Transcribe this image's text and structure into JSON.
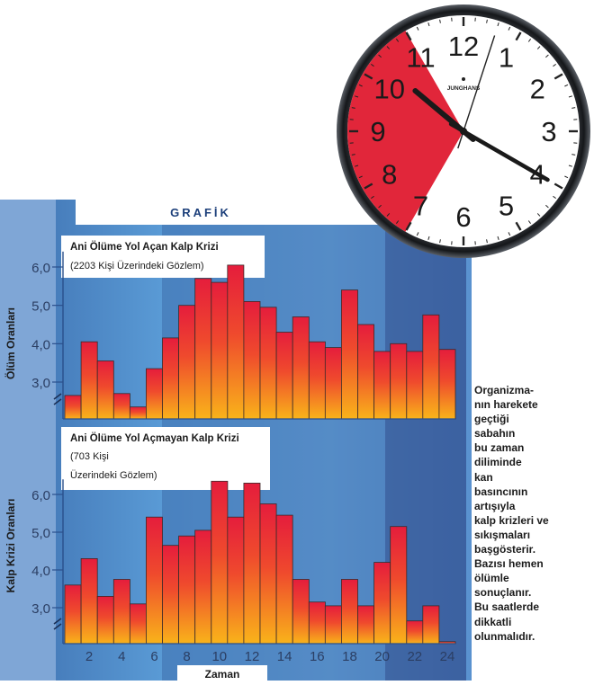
{
  "banner_title": "GRAFİK",
  "x_axis_label": "Zaman",
  "side_text_lines": [
    "Organizma-",
    "nın harekete",
    "geçtiği",
    "sabahın",
    "bu zaman",
    "diliminde",
    "kan",
    "basıncının",
    "artışıyla",
    "kalp krizleri ve",
    "sıkışmaları",
    "başgösterir.",
    "Bazısı hemen",
    "ölümle",
    "sonuçlanır.",
    "Bu saatlerde",
    "dikkatli",
    "olunmalıdır."
  ],
  "clock": {
    "numerals": [
      "12",
      "1",
      "2",
      "3",
      "4",
      "5",
      "6",
      "7",
      "8",
      "9",
      "10",
      "11"
    ],
    "brand": "JUNGHANS",
    "time": "10:20",
    "highlight_color": "#e1263a",
    "highlight_range": [
      7,
      11
    ]
  },
  "colors": {
    "bar_top": "#e51d3c",
    "bar_bottom": "#f9b31a",
    "chart_bg": "#5a9bd6",
    "chart_bg_dark": "#223b7a",
    "banner_bg": "#ffffff"
  },
  "chart_data": [
    {
      "type": "bar",
      "title": "Ani Ölüme Yol Açan Kalp Krizi",
      "subtitle": "(2203 Kişi Üzerindeki Gözlem)",
      "ylabel": "Ölüm Oranları",
      "xlabel": "Zaman",
      "x": [
        1,
        2,
        3,
        4,
        5,
        6,
        7,
        8,
        9,
        10,
        11,
        12,
        13,
        14,
        15,
        16,
        17,
        18,
        19,
        20,
        21,
        22,
        23,
        24
      ],
      "values": [
        2.65,
        4.05,
        3.55,
        2.7,
        2.35,
        3.35,
        4.15,
        5.0,
        5.7,
        5.6,
        6.05,
        5.1,
        4.95,
        4.3,
        4.7,
        4.05,
        3.9,
        5.4,
        4.5,
        3.8,
        4.0,
        3.8,
        4.75,
        3.85
      ],
      "yticks": [
        "3,0",
        "4,0",
        "5,0",
        "6,0"
      ],
      "xticks": [
        "2",
        "4",
        "6",
        "8",
        "10",
        "12",
        "14",
        "16",
        "18",
        "20",
        "22",
        "24"
      ],
      "ylim": [
        2.0,
        6.5
      ],
      "axis_break": true
    },
    {
      "type": "bar",
      "title": "Ani Ölüme Yol Açmayan Kalp Krizi",
      "subtitle": "(703 Kişi Üzerindeki Gözlem)",
      "ylabel": "Kalp Krizi Oranları",
      "xlabel": "Zaman",
      "x": [
        1,
        2,
        3,
        4,
        5,
        6,
        7,
        8,
        9,
        10,
        11,
        12,
        13,
        14,
        15,
        16,
        17,
        18,
        19,
        20,
        21,
        22,
        23,
        24
      ],
      "values": [
        3.6,
        4.3,
        3.3,
        3.75,
        3.1,
        5.4,
        4.65,
        4.9,
        5.05,
        6.35,
        5.4,
        6.3,
        5.75,
        5.45,
        3.75,
        3.15,
        3.05,
        3.75,
        3.05,
        4.2,
        5.15,
        2.65,
        3.05,
        2.1
      ],
      "yticks": [
        "3,0",
        "4,0",
        "5,0",
        "6,0"
      ],
      "xticks": [
        "2",
        "4",
        "6",
        "8",
        "10",
        "12",
        "14",
        "16",
        "18",
        "20",
        "22",
        "24"
      ],
      "ylim": [
        2.0,
        6.8
      ],
      "axis_break": true
    }
  ]
}
